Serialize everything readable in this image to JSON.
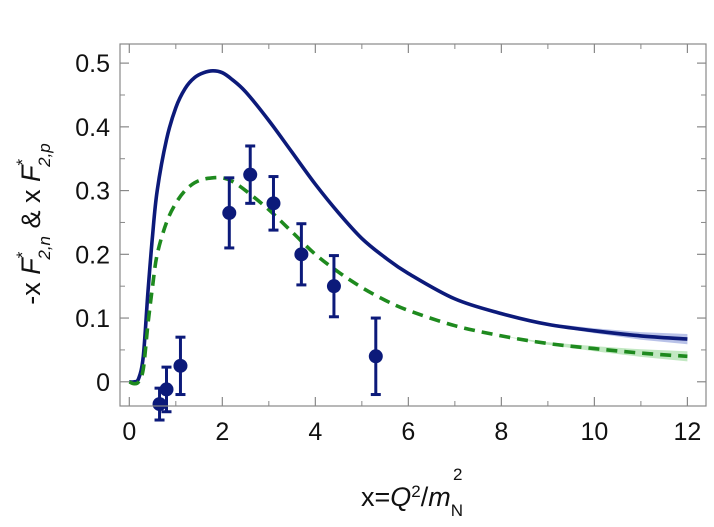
{
  "chart_data": {
    "type": "line",
    "xlabel": {
      "prefix": "x=",
      "main": "Q",
      "sup": "2",
      "slash": "/",
      "main2": "m",
      "sub2": "N",
      "sup2": "2"
    },
    "ylabel": {
      "lead": "-x ",
      "f1": "F",
      "sup1": "*",
      "sub1": "2,n",
      "mid": " & x ",
      "f2": "F",
      "sup2": "*",
      "sub2": "2,p"
    },
    "xlim": [
      -0.2,
      12.4
    ],
    "ylim": [
      -0.038,
      0.53
    ],
    "x_ticks": [
      0,
      2,
      4,
      6,
      8,
      10,
      12
    ],
    "y_ticks": [
      0,
      0.1,
      0.2,
      0.3,
      0.4,
      0.5
    ],
    "x_tick_labels": [
      "0",
      "2",
      "4",
      "6",
      "8",
      "10",
      "12"
    ],
    "y_tick_labels": [
      "0",
      "0.1",
      "0.2",
      "0.3",
      "0.4",
      "0.5"
    ],
    "grid": false,
    "colors": {
      "navy": "#0c1a7a",
      "green": "#1e8a1e",
      "navy_band": "#7f8fd6",
      "green_band": "#8fd68f",
      "frame": "#888888"
    },
    "series": [
      {
        "style": "solid",
        "color": "#0c1a7a",
        "x": [
          0.0,
          0.1,
          0.2,
          0.3,
          0.4,
          0.5,
          0.6,
          0.8,
          1.0,
          1.2,
          1.4,
          1.6,
          1.8,
          2.0,
          2.2,
          2.5,
          3.0,
          3.5,
          4.0,
          4.5,
          5.0,
          5.5,
          6.0,
          7.0,
          8.0,
          9.0,
          10.0,
          11.0,
          12.0
        ],
        "y": [
          0.0,
          0.0,
          0.005,
          0.04,
          0.14,
          0.23,
          0.3,
          0.38,
          0.43,
          0.46,
          0.477,
          0.485,
          0.488,
          0.485,
          0.475,
          0.455,
          0.41,
          0.36,
          0.31,
          0.265,
          0.225,
          0.195,
          0.17,
          0.13,
          0.107,
          0.09,
          0.08,
          0.072,
          0.067
        ],
        "band_from_x": 8.0,
        "band_halfwidth": [
          0.0,
          0.002,
          0.004,
          0.006,
          0.008
        ]
      },
      {
        "style": "dashed",
        "color": "#1e8a1e",
        "x": [
          0.0,
          0.1,
          0.2,
          0.3,
          0.4,
          0.5,
          0.6,
          0.8,
          1.0,
          1.2,
          1.4,
          1.6,
          1.8,
          2.0,
          2.2,
          2.5,
          3.0,
          3.5,
          4.0,
          4.5,
          5.0,
          5.5,
          6.0,
          7.0,
          8.0,
          9.0,
          10.0,
          11.0,
          12.0
        ],
        "y": [
          0.0,
          -0.003,
          0.0,
          0.02,
          0.09,
          0.15,
          0.2,
          0.25,
          0.28,
          0.3,
          0.312,
          0.318,
          0.32,
          0.32,
          0.315,
          0.3,
          0.27,
          0.235,
          0.2,
          0.172,
          0.148,
          0.128,
          0.112,
          0.088,
          0.072,
          0.06,
          0.052,
          0.045,
          0.04
        ],
        "band_from_x": 8.0,
        "band_halfwidth": [
          0.0,
          0.002,
          0.004,
          0.006,
          0.008
        ]
      }
    ],
    "points": {
      "color": "#0c1a7a",
      "x": [
        0.65,
        0.8,
        1.1,
        2.15,
        2.6,
        3.1,
        3.7,
        4.4,
        5.3
      ],
      "y": [
        -0.035,
        -0.012,
        0.025,
        0.265,
        0.325,
        0.28,
        0.2,
        0.15,
        0.04
      ],
      "err": [
        0.025,
        0.035,
        0.045,
        0.055,
        0.045,
        0.042,
        0.048,
        0.048,
        0.06
      ]
    }
  }
}
